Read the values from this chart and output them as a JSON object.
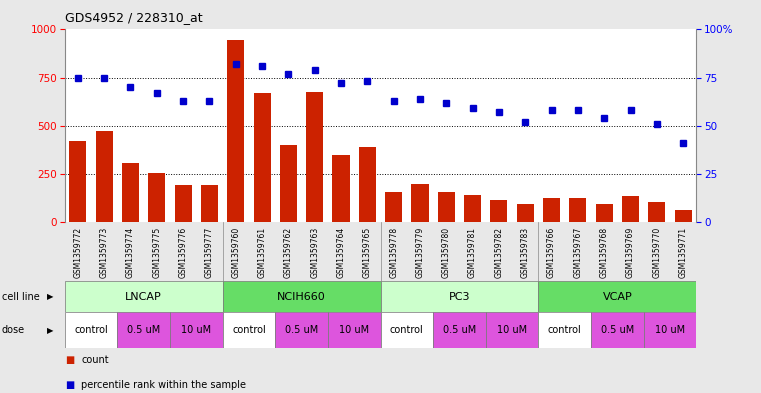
{
  "title": "GDS4952 / 228310_at",
  "samples": [
    "GSM1359772",
    "GSM1359773",
    "GSM1359774",
    "GSM1359775",
    "GSM1359776",
    "GSM1359777",
    "GSM1359760",
    "GSM1359761",
    "GSM1359762",
    "GSM1359763",
    "GSM1359764",
    "GSM1359765",
    "GSM1359778",
    "GSM1359779",
    "GSM1359780",
    "GSM1359781",
    "GSM1359782",
    "GSM1359783",
    "GSM1359766",
    "GSM1359767",
    "GSM1359768",
    "GSM1359769",
    "GSM1359770",
    "GSM1359771"
  ],
  "counts": [
    420,
    475,
    305,
    255,
    190,
    190,
    945,
    670,
    400,
    675,
    350,
    390,
    155,
    195,
    155,
    140,
    115,
    95,
    125,
    125,
    95,
    135,
    105,
    65
  ],
  "percentile_ranks": [
    75,
    75,
    70,
    67,
    63,
    63,
    82,
    81,
    77,
    79,
    72,
    73,
    63,
    64,
    62,
    59,
    57,
    52,
    58,
    58,
    54,
    58,
    51,
    41
  ],
  "cell_lines_data": [
    [
      "LNCAP",
      0,
      6,
      "#ccffcc"
    ],
    [
      "NCIH660",
      6,
      12,
      "#66dd66"
    ],
    [
      "PC3",
      12,
      18,
      "#ccffcc"
    ],
    [
      "VCAP",
      18,
      24,
      "#66dd66"
    ]
  ],
  "dose_groups": [
    [
      "control",
      0,
      2,
      "#ffffff"
    ],
    [
      "0.5 uM",
      2,
      4,
      "#dd55dd"
    ],
    [
      "10 uM",
      4,
      6,
      "#dd55dd"
    ],
    [
      "control",
      6,
      8,
      "#ffffff"
    ],
    [
      "0.5 uM",
      8,
      10,
      "#dd55dd"
    ],
    [
      "10 uM",
      10,
      12,
      "#dd55dd"
    ],
    [
      "control",
      12,
      14,
      "#ffffff"
    ],
    [
      "0.5 uM",
      14,
      16,
      "#dd55dd"
    ],
    [
      "10 uM",
      16,
      18,
      "#dd55dd"
    ],
    [
      "control",
      18,
      20,
      "#ffffff"
    ],
    [
      "0.5 uM",
      20,
      22,
      "#dd55dd"
    ],
    [
      "10 uM",
      22,
      24,
      "#dd55dd"
    ]
  ],
  "bar_color": "#cc2200",
  "dot_color": "#0000cc",
  "left_ylim": [
    0,
    1000
  ],
  "right_ylim": [
    0,
    100
  ],
  "left_yticks": [
    0,
    250,
    500,
    750,
    1000
  ],
  "right_yticks": [
    0,
    25,
    50,
    75,
    100
  ],
  "right_yticklabels": [
    "0",
    "25",
    "50",
    "75",
    "100%"
  ],
  "bg_color": "#e8e8e8",
  "plot_bg": "#ffffff",
  "sample_bg": "#c8c8c8",
  "gridline_color": "#000000"
}
